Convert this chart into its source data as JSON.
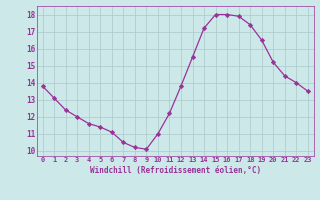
{
  "x": [
    0,
    1,
    2,
    3,
    4,
    5,
    6,
    7,
    8,
    9,
    10,
    11,
    12,
    13,
    14,
    15,
    16,
    17,
    18,
    19,
    20,
    21,
    22,
    23
  ],
  "y": [
    13.8,
    13.1,
    12.4,
    12.0,
    11.6,
    11.4,
    11.1,
    10.5,
    10.2,
    10.1,
    11.0,
    12.2,
    13.8,
    15.5,
    17.2,
    18.0,
    18.0,
    17.9,
    17.4,
    16.5,
    15.2,
    14.4,
    14.0,
    13.5
  ],
  "line_color": "#993399",
  "marker": "D",
  "marker_size": 2.2,
  "bg_color": "#cce8e8",
  "grid_color": "#b0cece",
  "xlabel": "Windchill (Refroidissement éolien,°C)",
  "xlabel_color": "#993399",
  "tick_color": "#993399",
  "ylim": [
    9.7,
    18.5
  ],
  "xlim": [
    -0.5,
    23.5
  ],
  "yticks": [
    10,
    11,
    12,
    13,
    14,
    15,
    16,
    17,
    18
  ],
  "xticks": [
    0,
    1,
    2,
    3,
    4,
    5,
    6,
    7,
    8,
    9,
    10,
    11,
    12,
    13,
    14,
    15,
    16,
    17,
    18,
    19,
    20,
    21,
    22,
    23
  ],
  "spine_color": "#993399"
}
